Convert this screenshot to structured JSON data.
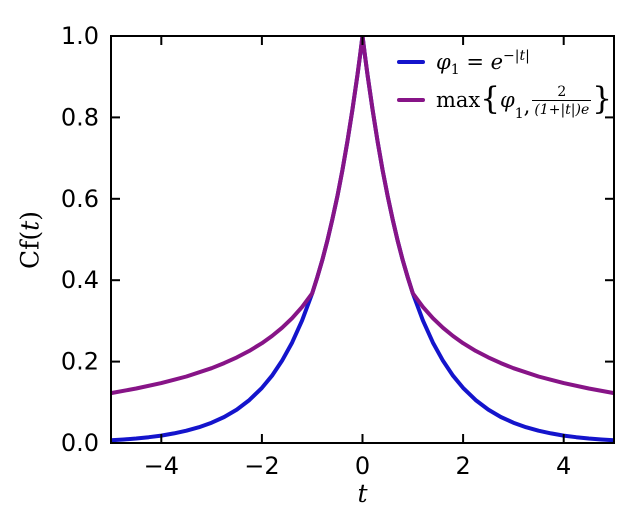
{
  "figure": {
    "background": "#ffffff"
  },
  "axis": {
    "xlabel": "t",
    "ylabel_pre": "Cf(",
    "ylabel_var": "t",
    "ylabel_post": ")"
  },
  "legend": {
    "position": "upper right",
    "items": [
      {
        "name": "phi1",
        "color": "#1414cc",
        "var": "φ",
        "sub": "1",
        "eq": " = ",
        "base": "e",
        "sup": "−|t|"
      },
      {
        "name": "max-envelope",
        "color": "#871487",
        "func": "max",
        "lbrace": "{",
        "var": "φ",
        "sub": "1",
        "comma": ",",
        "num": "2",
        "den": "(1+|t|)e",
        "rbrace": "}"
      }
    ]
  },
  "chart_data": {
    "type": "line",
    "title": "",
    "xlabel": "t",
    "ylabel": "Cf(t)",
    "xlim": [
      -5,
      5
    ],
    "ylim": [
      0,
      1
    ],
    "grid": false,
    "legend_position": "upper right",
    "x_ticks": {
      "values": [
        -4,
        -2,
        0,
        2,
        4
      ],
      "labels": [
        "−4",
        "−2",
        "0",
        "2",
        "4"
      ]
    },
    "y_ticks": {
      "values": [
        0,
        0.2,
        0.4,
        0.6,
        0.8,
        1.0
      ],
      "labels": [
        "0.0",
        "0.2",
        "0.4",
        "0.6",
        "0.8",
        "1.0"
      ]
    },
    "series": [
      {
        "name": "phi1",
        "label": "φ1 = e^(−|t|)",
        "color": "#1414cc",
        "points": [
          [
            -5,
            0.0067
          ],
          [
            -4.75,
            0.0087
          ],
          [
            -4.5,
            0.0111
          ],
          [
            -4.25,
            0.0143
          ],
          [
            -4,
            0.0183
          ],
          [
            -3.75,
            0.0235
          ],
          [
            -3.5,
            0.0302
          ],
          [
            -3.25,
            0.0388
          ],
          [
            -3,
            0.0498
          ],
          [
            -2.75,
            0.0639
          ],
          [
            -2.5,
            0.0821
          ],
          [
            -2.25,
            0.1054
          ],
          [
            -2,
            0.1353
          ],
          [
            -1.8,
            0.1653
          ],
          [
            -1.6,
            0.2019
          ],
          [
            -1.4,
            0.2466
          ],
          [
            -1.2,
            0.3012
          ],
          [
            -1,
            0.3679
          ],
          [
            -0.9,
            0.4066
          ],
          [
            -0.8,
            0.4493
          ],
          [
            -0.7,
            0.4966
          ],
          [
            -0.6,
            0.5488
          ],
          [
            -0.5,
            0.6065
          ],
          [
            -0.4,
            0.6703
          ],
          [
            -0.3,
            0.7408
          ],
          [
            -0.2,
            0.8187
          ],
          [
            -0.1,
            0.9048
          ],
          [
            -0.05,
            0.9512
          ],
          [
            0,
            1.0
          ],
          [
            0.05,
            0.9512
          ],
          [
            0.1,
            0.9048
          ],
          [
            0.2,
            0.8187
          ],
          [
            0.3,
            0.7408
          ],
          [
            0.4,
            0.6703
          ],
          [
            0.5,
            0.6065
          ],
          [
            0.6,
            0.5488
          ],
          [
            0.7,
            0.4966
          ],
          [
            0.8,
            0.4493
          ],
          [
            0.9,
            0.4066
          ],
          [
            1,
            0.3679
          ],
          [
            1.2,
            0.3012
          ],
          [
            1.4,
            0.2466
          ],
          [
            1.6,
            0.2019
          ],
          [
            1.8,
            0.1653
          ],
          [
            2,
            0.1353
          ],
          [
            2.25,
            0.1054
          ],
          [
            2.5,
            0.0821
          ],
          [
            2.75,
            0.0639
          ],
          [
            3,
            0.0498
          ],
          [
            3.25,
            0.0388
          ],
          [
            3.5,
            0.0302
          ],
          [
            3.75,
            0.0235
          ],
          [
            4,
            0.0183
          ],
          [
            4.25,
            0.0143
          ],
          [
            4.5,
            0.0111
          ],
          [
            4.75,
            0.0087
          ],
          [
            5,
            0.0067
          ]
        ]
      },
      {
        "name": "max-envelope",
        "label": "max{φ1, 2/((1+|t|)e)}",
        "color": "#871487",
        "points": [
          [
            -5,
            0.1226
          ],
          [
            -4.5,
            0.1338
          ],
          [
            -4,
            0.1472
          ],
          [
            -3.5,
            0.1635
          ],
          [
            -3,
            0.1839
          ],
          [
            -2.75,
            0.1962
          ],
          [
            -2.5,
            0.2102
          ],
          [
            -2.25,
            0.2264
          ],
          [
            -2,
            0.2453
          ],
          [
            -1.8,
            0.2628
          ],
          [
            -1.6,
            0.283
          ],
          [
            -1.4,
            0.3066
          ],
          [
            -1.2,
            0.3344
          ],
          [
            -1,
            0.3679
          ],
          [
            -0.9,
            0.4066
          ],
          [
            -0.8,
            0.4493
          ],
          [
            -0.7,
            0.4966
          ],
          [
            -0.6,
            0.5488
          ],
          [
            -0.5,
            0.6065
          ],
          [
            -0.4,
            0.6703
          ],
          [
            -0.3,
            0.7408
          ],
          [
            -0.2,
            0.8187
          ],
          [
            -0.1,
            0.9048
          ],
          [
            -0.05,
            0.9512
          ],
          [
            0,
            1.0
          ],
          [
            0.05,
            0.9512
          ],
          [
            0.1,
            0.9048
          ],
          [
            0.2,
            0.8187
          ],
          [
            0.3,
            0.7408
          ],
          [
            0.4,
            0.6703
          ],
          [
            0.5,
            0.6065
          ],
          [
            0.6,
            0.5488
          ],
          [
            0.7,
            0.4966
          ],
          [
            0.8,
            0.4493
          ],
          [
            0.9,
            0.4066
          ],
          [
            1,
            0.3679
          ],
          [
            1.2,
            0.3344
          ],
          [
            1.4,
            0.3066
          ],
          [
            1.6,
            0.283
          ],
          [
            1.8,
            0.2628
          ],
          [
            2,
            0.2453
          ],
          [
            2.25,
            0.2264
          ],
          [
            2.5,
            0.2102
          ],
          [
            2.75,
            0.1962
          ],
          [
            3,
            0.1839
          ],
          [
            3.5,
            0.1635
          ],
          [
            4,
            0.1472
          ],
          [
            4.5,
            0.1338
          ],
          [
            5,
            0.1226
          ]
        ]
      }
    ]
  }
}
